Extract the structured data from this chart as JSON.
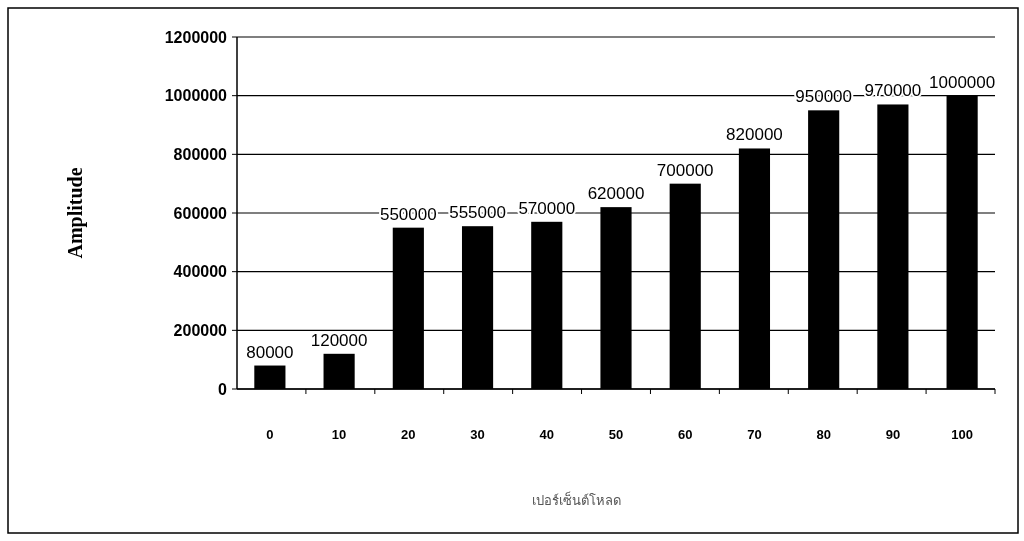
{
  "chart_data": {
    "type": "bar",
    "xlabel": "เปอร์เซ็นต์โหลด",
    "ylabel": "Amplitude",
    "categories": [
      "0",
      "10",
      "20",
      "30",
      "40",
      "50",
      "60",
      "70",
      "80",
      "90",
      "100"
    ],
    "values": [
      80000,
      120000,
      550000,
      555000,
      570000,
      620000,
      700000,
      820000,
      950000,
      970000,
      1000000
    ],
    "color": "#000000",
    "data_labels": true,
    "grid": "y",
    "ylim": [
      0,
      1200000
    ],
    "yticks": [
      0,
      200000,
      400000,
      600000,
      800000,
      1000000,
      1200000
    ]
  }
}
